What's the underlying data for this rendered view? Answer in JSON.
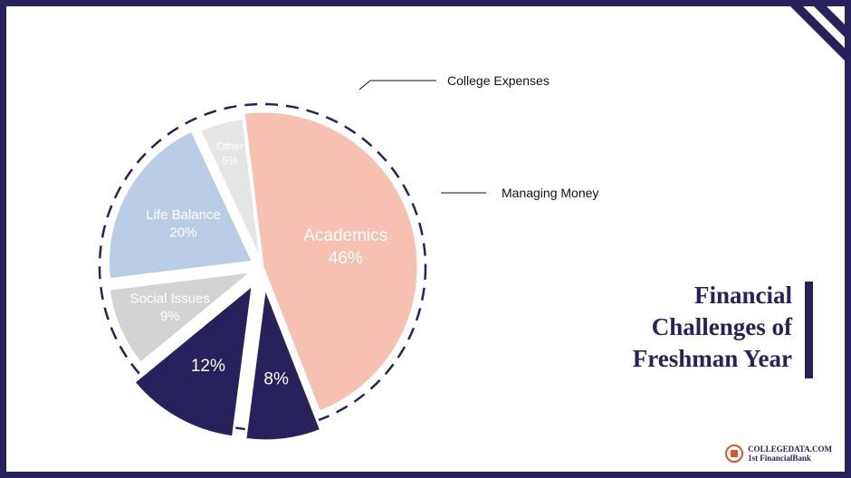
{
  "chart_data": {
    "type": "pie",
    "title": "Financial Challenges of Freshman Year",
    "title_lines": [
      "Financial",
      "Challenges of",
      "Freshman Year"
    ],
    "slices": [
      {
        "label": "Academics",
        "value": 46,
        "display": "46%",
        "color": "#f7c1b1",
        "inside_label": "Academics"
      },
      {
        "label": "College Expenses",
        "value": 8,
        "display": "8%",
        "color": "#27215c",
        "inside_label": ""
      },
      {
        "label": "Managing Money",
        "value": 12,
        "display": "12%",
        "color": "#27215c",
        "inside_label": ""
      },
      {
        "label": "Social Issues",
        "value": 9,
        "display": "9%",
        "color": "#d3d3d3",
        "inside_label": "Social Issues"
      },
      {
        "label": "Life Balance",
        "value": 20,
        "display": "20%",
        "color": "#b9cde6",
        "inside_label": "Life Balance"
      },
      {
        "label": "Other",
        "value": 5,
        "display": "5%",
        "color": "#e5e5e5",
        "inside_label": "Other"
      }
    ],
    "callouts": [
      {
        "slice": "College Expenses",
        "text": "College Expenses"
      },
      {
        "slice": "Managing Money",
        "text": "Managing Money"
      }
    ]
  },
  "logo": {
    "line1": "COLLEGEDATA.COM",
    "line2": "1st FinancialBank"
  },
  "colors": {
    "frame": "#27215c",
    "accent": "#27215c"
  }
}
